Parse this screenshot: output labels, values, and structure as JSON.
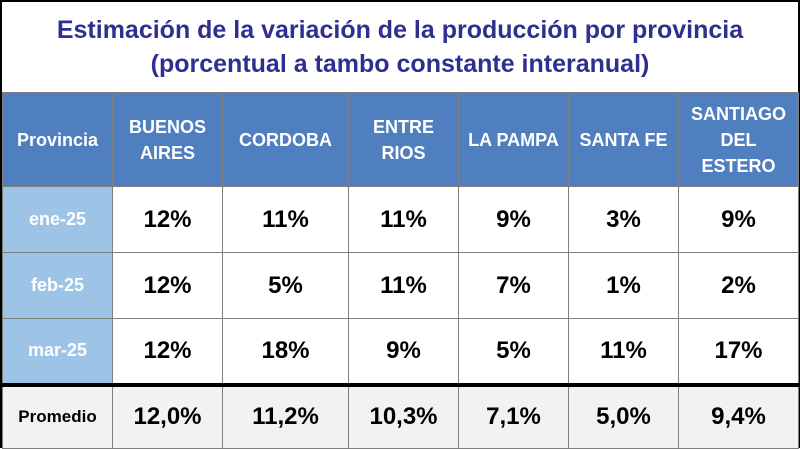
{
  "chart_data": {
    "type": "table",
    "title_line1": "Estimación de la variación de la producción por provincia",
    "title_line2": "(porcentual a tambo constante interanual)",
    "header_label": "Provincia",
    "columns": [
      [
        "BUENOS",
        "AIRES"
      ],
      [
        "CORDOBA"
      ],
      [
        "ENTRE",
        "RIOS"
      ],
      [
        "LA PAMPA"
      ],
      [
        "SANTA FE"
      ],
      [
        "SANTIAGO",
        "DEL ESTERO"
      ]
    ],
    "rows": [
      {
        "label": "ene-25",
        "values": [
          "12%",
          "11%",
          "11%",
          "9%",
          "3%",
          "9%"
        ]
      },
      {
        "label": "feb-25",
        "values": [
          "12%",
          "5%",
          "11%",
          "7%",
          "1%",
          "2%"
        ]
      },
      {
        "label": "mar-25",
        "values": [
          "12%",
          "18%",
          "9%",
          "5%",
          "11%",
          "17%"
        ]
      }
    ],
    "average": {
      "label": "Promedio",
      "values": [
        "12,0%",
        "11,2%",
        "10,3%",
        "7,1%",
        "5,0%",
        "9,4%"
      ]
    }
  },
  "colors": {
    "title": "#2f2f8f",
    "header_bg": "#4f7fbf",
    "rowhead_bg": "#9dc3e6",
    "avg_bg": "#f2f2f2"
  }
}
